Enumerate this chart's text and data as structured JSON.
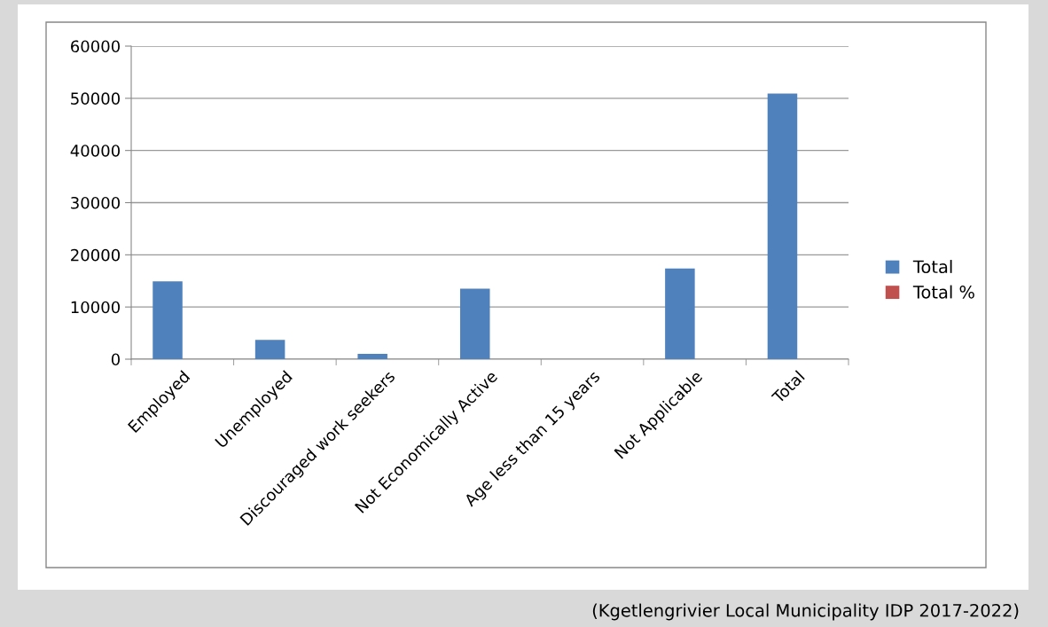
{
  "chart_data": {
    "type": "bar",
    "categories": [
      "Employed",
      "Unemployed",
      "Discouraged work seekers",
      "Not Economically Active",
      "Age less than 15 years",
      "Not Applicable",
      "Total"
    ],
    "series": [
      {
        "name": "Total",
        "color": "#4f81bd",
        "values": [
          14900,
          3700,
          1000,
          13500,
          0,
          17400,
          50900
        ]
      },
      {
        "name": "Total %",
        "color": "#c0504d",
        "values": [
          null,
          null,
          null,
          null,
          null,
          null,
          null
        ]
      }
    ],
    "ylim": [
      0,
      60000
    ],
    "yticks": [
      0,
      10000,
      20000,
      30000,
      40000,
      50000,
      60000
    ],
    "grid": "y",
    "legend": "right",
    "annotations": [
      "(Kgetlengrivier Local Municipality IDP 2017-2022)"
    ]
  }
}
